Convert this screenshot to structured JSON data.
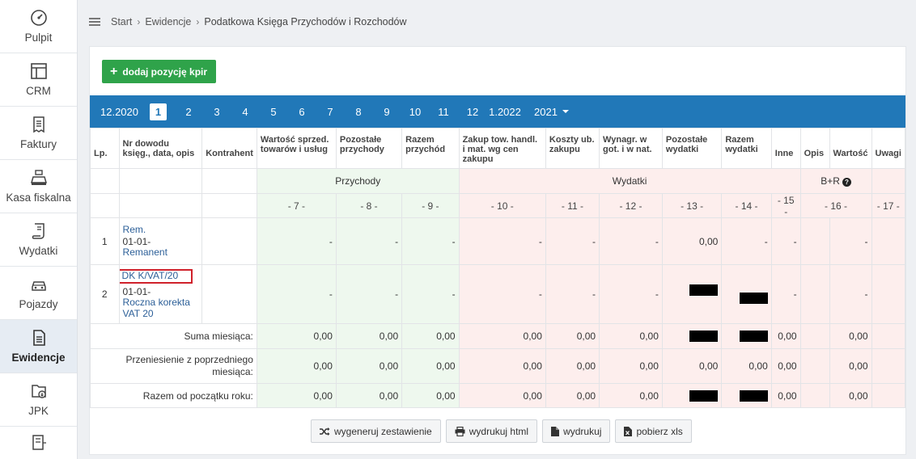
{
  "sidebar": {
    "items": [
      {
        "label": "Pulpit",
        "icon": "gauge-icon"
      },
      {
        "label": "CRM",
        "icon": "layout-icon"
      },
      {
        "label": "Faktury",
        "icon": "invoice-icon"
      },
      {
        "label": "Kasa fiskalna",
        "icon": "cash-register-icon"
      },
      {
        "label": "Wydatki",
        "icon": "receipt-icon"
      },
      {
        "label": "Pojazdy",
        "icon": "car-icon"
      },
      {
        "label": "Ewidencje",
        "icon": "records-icon",
        "active": true
      },
      {
        "label": "JPK",
        "icon": "jpk-file-icon"
      },
      {
        "label": "",
        "icon": "building-icon"
      }
    ]
  },
  "breadcrumb": {
    "start": "Start",
    "section": "Ewidencje",
    "current": "Podatkowa Księga Przychodów i Rozchodów"
  },
  "toolbar": {
    "add_label": "dodaj pozycję kpir"
  },
  "months": {
    "prev": "12.2020",
    "items": [
      "1",
      "2",
      "3",
      "4",
      "5",
      "6",
      "7",
      "8",
      "9",
      "10",
      "11",
      "12"
    ],
    "active": "1",
    "next": "1.2022",
    "year": "2021"
  },
  "table": {
    "headers": {
      "lp": "Lp.",
      "doc": "Nr dowodu księg., data, opis",
      "contractor": "Kontrahent",
      "c7": "Wartość sprzed. towarów i usług",
      "c8": "Pozostałe przychody",
      "c9": "Razem przychód",
      "c10": "Zakup tow. handl. i mat. wg cen zakupu",
      "c11": "Koszty ub. zakupu",
      "c12": "Wynagr. w got. i w nat.",
      "c13": "Pozostałe wydatki",
      "c14": "Razem wydatki",
      "c15": "Inne",
      "c16a": "Opis",
      "c16b": "Wartość",
      "c17": "Uwagi"
    },
    "sections": {
      "income": "Przychody",
      "expenses": "Wydatki",
      "br": "B+R"
    },
    "col_numbers": [
      "- 7 -",
      "- 8 -",
      "- 9 -",
      "- 10 -",
      "- 11 -",
      "- 12 -",
      "- 13 -",
      "- 14 -",
      "- 15 -",
      "- 16 -",
      "- 17 -"
    ],
    "rows": [
      {
        "lp": "1",
        "doc_no": "Rem.",
        "date": "01-01-",
        "desc": "Remanent",
        "c7": "-",
        "c8": "-",
        "c9": "-",
        "c10": "-",
        "c11": "-",
        "c12": "-",
        "c13": "0,00",
        "c14": "-",
        "c15": "-",
        "c16b": "-"
      },
      {
        "lp": "2",
        "doc_no": "DK K/VAT/20",
        "date": "01-01-",
        "desc": "Roczna korekta VAT 20",
        "c7": "-",
        "c8": "-",
        "c9": "-",
        "c10": "-",
        "c11": "-",
        "c12": "-",
        "c15": "-",
        "c16b": "-"
      }
    ],
    "summary": [
      {
        "label": "Suma miesiąca:",
        "c7": "0,00",
        "c8": "0,00",
        "c9": "0,00",
        "c10": "0,00",
        "c11": "0,00",
        "c12": "0,00",
        "c15": "0,00",
        "c16b": "0,00"
      },
      {
        "label": "Przeniesienie z poprzedniego miesiąca:",
        "c7": "0,00",
        "c8": "0,00",
        "c9": "0,00",
        "c10": "0,00",
        "c11": "0,00",
        "c12": "0,00",
        "c13": "0,00",
        "c14": "0,00",
        "c15": "0,00",
        "c16b": "0,00"
      },
      {
        "label": "Razem od początku roku:",
        "c7": "0,00",
        "c8": "0,00",
        "c9": "0,00",
        "c10": "0,00",
        "c11": "0,00",
        "c12": "0,00",
        "c15": "0,00",
        "c16b": "0,00"
      }
    ]
  },
  "actions": {
    "generate": "wygeneruj zestawienie",
    "print_html": "wydrukuj html",
    "print": "wydrukuj",
    "xls": "pobierz xls"
  },
  "colors": {
    "accent_blue": "#2178b8",
    "add_green": "#2fa34a",
    "income_bg": "#eef8ee",
    "expense_bg": "#fdeeed",
    "highlight_red": "#d0212b"
  }
}
